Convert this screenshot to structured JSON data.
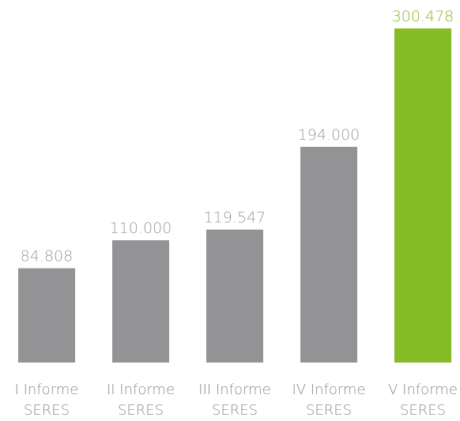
{
  "chart_data": {
    "type": "bar",
    "categories": [
      "I Informe SERES",
      "II Informe SERES",
      "III Informe SERES",
      "IV Informe SERES",
      "V Informe SERES"
    ],
    "values": [
      84808,
      110000,
      119547,
      194000,
      300478
    ],
    "value_labels": [
      "84.808",
      "110.000",
      "119.547",
      "194.000",
      "300.478"
    ],
    "colors": [
      "#939395",
      "#939395",
      "#939395",
      "#939395",
      "#85bb25"
    ],
    "label_colors": [
      "#9b9b9d",
      "#9b9b9d",
      "#9b9b9d",
      "#9b9b9d",
      "#85bb25"
    ]
  }
}
